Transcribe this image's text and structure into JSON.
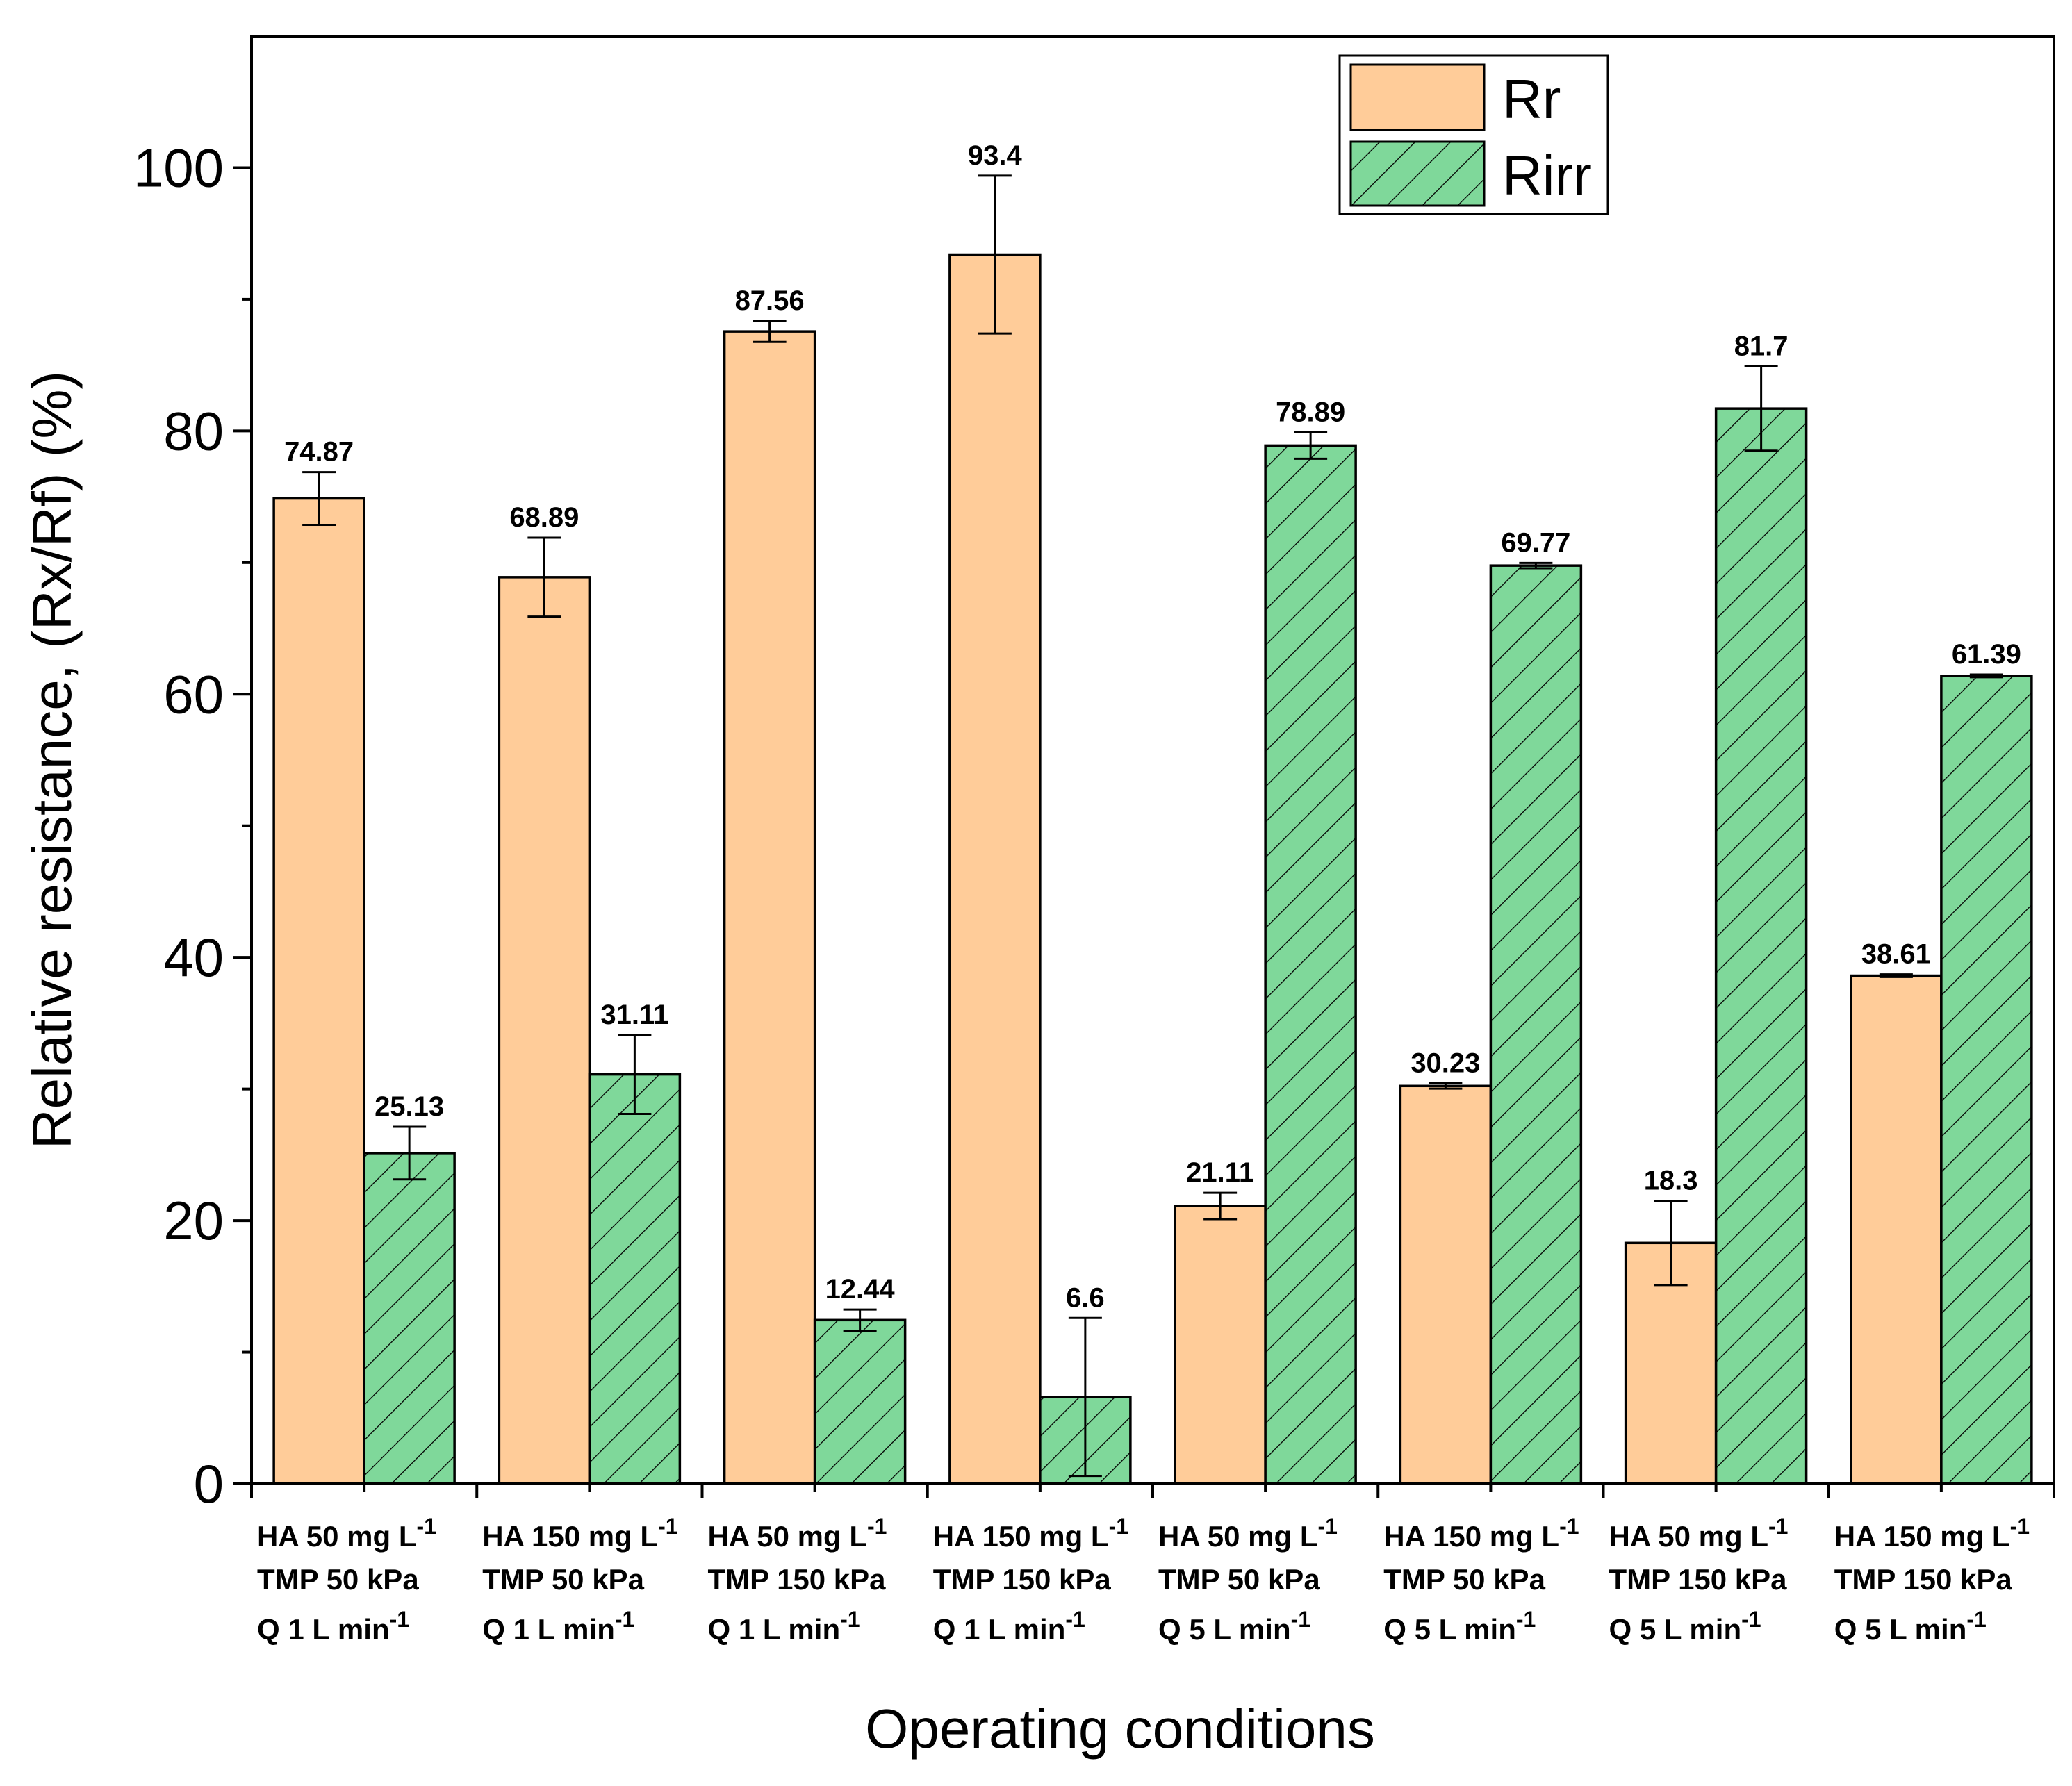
{
  "chart_data": {
    "type": "bar",
    "title": "",
    "xlabel": "Operating conditions",
    "ylabel": "Relative resistance, (Rx/Rf) (%)",
    "ylim": [
      0,
      110
    ],
    "yticks": [
      0,
      20,
      40,
      60,
      80,
      100
    ],
    "ytick_labels": [
      "0",
      "20",
      "40",
      "60",
      "80",
      "100"
    ],
    "legend_position": "top-right",
    "categories": [
      {
        "line1": "HA 50 mg L",
        "line1_sup": "-1",
        "line2": "TMP 50 kPa",
        "line3": "Q 1 L min",
        "line3_sup": "-1"
      },
      {
        "line1": "HA 150 mg L",
        "line1_sup": "-1",
        "line2": "TMP 50 kPa",
        "line3": "Q 1 L min",
        "line3_sup": "-1"
      },
      {
        "line1": "HA 50 mg L",
        "line1_sup": "-1",
        "line2": "TMP 150 kPa",
        "line3": "Q 1 L min",
        "line3_sup": "-1"
      },
      {
        "line1": "HA 150 mg L",
        "line1_sup": "-1",
        "line2": "TMP 150 kPa",
        "line3": "Q 1 L min",
        "line3_sup": "-1"
      },
      {
        "line1": "HA 50 mg L",
        "line1_sup": "-1",
        "line2": "TMP 50 kPa",
        "line3": "Q 5 L min",
        "line3_sup": "-1"
      },
      {
        "line1": "HA 150 mg L",
        "line1_sup": "-1",
        "line2": "TMP 50 kPa",
        "line3": "Q 5 L min",
        "line3_sup": "-1"
      },
      {
        "line1": "HA 50 mg L",
        "line1_sup": "-1",
        "line2": "TMP 150 kPa",
        "line3": "Q 5 L min",
        "line3_sup": "-1"
      },
      {
        "line1": "HA 150 mg L",
        "line1_sup": "-1",
        "line2": "TMP 150 kPa",
        "line3": "Q 5 L min",
        "line3_sup": "-1"
      }
    ],
    "series": [
      {
        "name": "Rr",
        "color": "#FFCC99",
        "pattern": "none",
        "values": [
          74.87,
          68.89,
          87.56,
          93.4,
          21.11,
          30.23,
          18.3,
          38.61
        ],
        "labels": [
          "74.87",
          "68.89",
          "87.56",
          "93.4",
          "21.11",
          "30.23",
          "18.3",
          "38.61"
        ],
        "errors": [
          2.0,
          3.0,
          0.8,
          6.0,
          1.0,
          0.2,
          3.2,
          0.1
        ]
      },
      {
        "name": "Rirr",
        "color": "#7FD89A",
        "pattern": "diagonal-hatch",
        "values": [
          25.13,
          31.11,
          12.44,
          6.6,
          78.89,
          69.77,
          81.7,
          61.39
        ],
        "labels": [
          "25.13",
          "31.11",
          "12.44",
          "6.6",
          "78.89",
          "69.77",
          "81.7",
          "61.39"
        ],
        "errors": [
          2.0,
          3.0,
          0.8,
          6.0,
          1.0,
          0.2,
          3.2,
          0.1
        ]
      }
    ]
  }
}
